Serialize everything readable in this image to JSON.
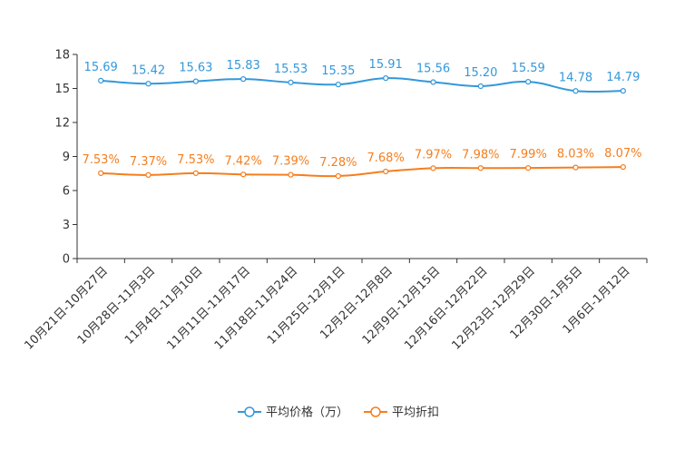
{
  "chart_data": {
    "type": "line",
    "title": "",
    "xlabel": "",
    "ylabel": "",
    "ylim": [
      0,
      18
    ],
    "yticks": [
      0,
      3,
      6,
      9,
      12,
      15,
      18
    ],
    "grid": false,
    "legend_position": "bottom-center",
    "categories": [
      "10月21日-10月27日",
      "10月28日-11月3日",
      "11月4日-11月10日",
      "11月11日-11月17日",
      "11月18日-11月24日",
      "11月25日-12月1日",
      "12月2日-12月8日",
      "12月9日-12月15日",
      "12月16日-12月22日",
      "12月23日-12月29日",
      "12月30日-1月5日",
      "1月6日-1月12日"
    ],
    "series": [
      {
        "name": "平均价格（万）",
        "color": "#3398DB",
        "values": [
          15.69,
          15.42,
          15.63,
          15.83,
          15.53,
          15.35,
          15.91,
          15.56,
          15.2,
          15.59,
          14.78,
          14.79
        ],
        "labels": [
          "15.69",
          "15.42",
          "15.63",
          "15.83",
          "15.53",
          "15.35",
          "15.91",
          "15.56",
          "15.20",
          "15.59",
          "14.78",
          "14.79"
        ]
      },
      {
        "name": "平均折扣",
        "color": "#F57E1E",
        "values": [
          7.53,
          7.37,
          7.53,
          7.42,
          7.39,
          7.28,
          7.68,
          7.97,
          7.98,
          7.99,
          8.03,
          8.07
        ],
        "labels": [
          "7.53%",
          "7.37%",
          "7.53%",
          "7.42%",
          "7.39%",
          "7.28%",
          "7.68%",
          "7.97%",
          "7.98%",
          "7.99%",
          "8.03%",
          "8.07%"
        ]
      }
    ]
  }
}
